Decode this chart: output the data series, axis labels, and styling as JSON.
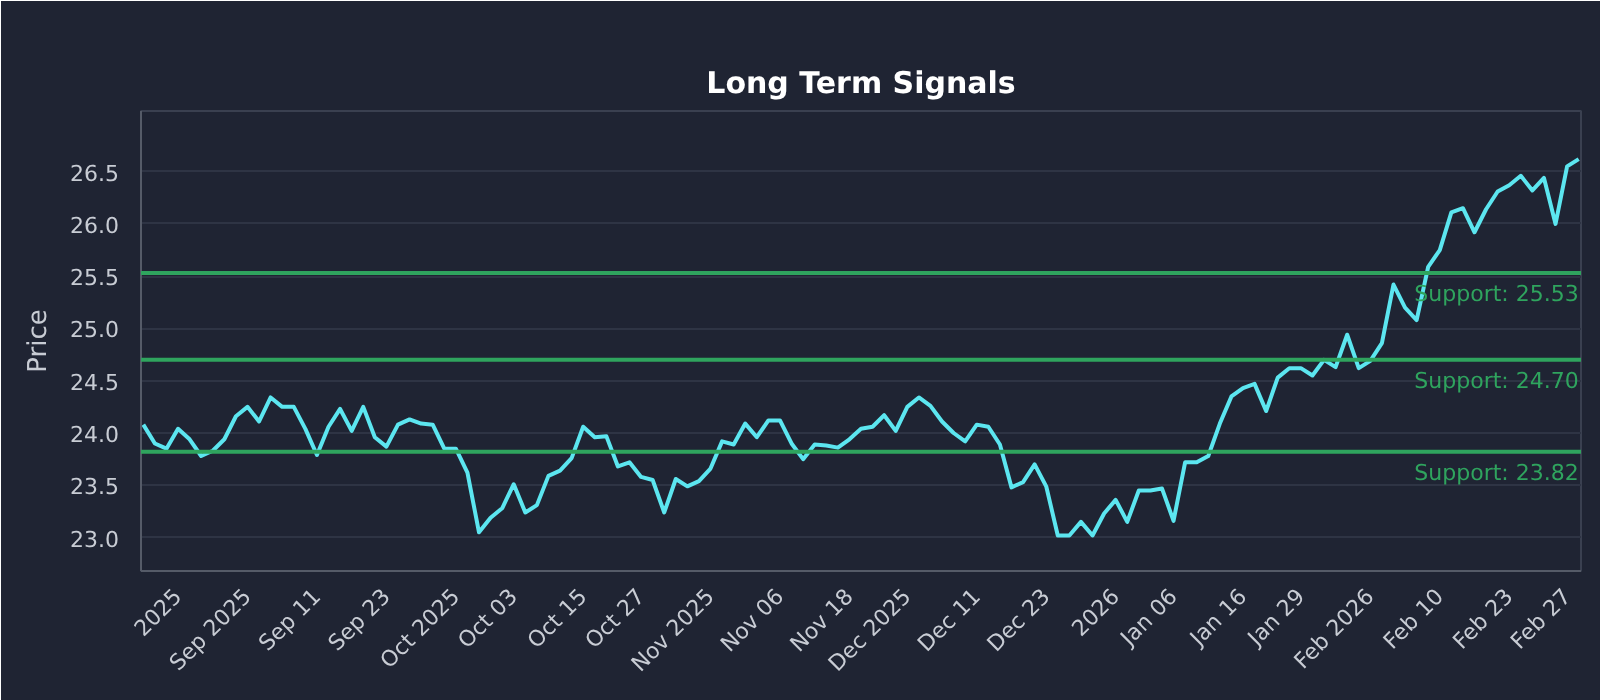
{
  "chart_data": {
    "type": "line",
    "title": "Long Term Signals",
    "ylabel": "Price",
    "categories": [
      null,
      null,
      null,
      "2025",
      null,
      null,
      null,
      null,
      null,
      "Sep 2025",
      null,
      null,
      null,
      null,
      null,
      "Sep 11",
      null,
      null,
      null,
      null,
      null,
      "Sep 23",
      null,
      null,
      null,
      null,
      null,
      "Oct 2025",
      null,
      null,
      null,
      null,
      "Oct 03",
      null,
      null,
      null,
      null,
      null,
      "Oct 15",
      null,
      null,
      null,
      null,
      "Oct 27",
      null,
      null,
      null,
      null,
      null,
      "Nov 2025",
      null,
      null,
      null,
      null,
      null,
      "Nov 06",
      null,
      null,
      null,
      null,
      null,
      "Nov 18",
      null,
      null,
      null,
      null,
      "Dec 2025",
      null,
      null,
      null,
      null,
      null,
      "Dec 11",
      null,
      null,
      null,
      null,
      null,
      "Dec 23",
      null,
      null,
      null,
      null,
      null,
      "2026",
      null,
      null,
      null,
      null,
      "Jan 06",
      null,
      null,
      null,
      null,
      null,
      "Jan 16",
      null,
      null,
      null,
      null,
      "Jan 29",
      null,
      null,
      null,
      null,
      null,
      "Feb 2026",
      null,
      null,
      null,
      null,
      null,
      "Feb 10",
      null,
      null,
      null,
      null,
      null,
      "Feb 23",
      null,
      null,
      null,
      null,
      "Feb 27",
      null
    ],
    "series": [
      {
        "color": "#5ce6f0",
        "values": [
          24.08,
          23.9,
          23.85,
          24.04,
          23.94,
          23.78,
          23.83,
          23.94,
          24.16,
          24.25,
          24.11,
          24.34,
          24.25,
          24.25,
          24.04,
          23.79,
          24.06,
          24.23,
          24.02,
          24.25,
          23.96,
          23.87,
          24.08,
          24.13,
          24.09,
          24.08,
          23.85,
          23.85,
          23.62,
          23.05,
          23.19,
          23.28,
          23.51,
          23.24,
          23.31,
          23.59,
          23.64,
          23.76,
          24.06,
          23.96,
          23.97,
          23.68,
          23.72,
          23.58,
          23.55,
          23.24,
          23.56,
          23.49,
          23.54,
          23.66,
          23.92,
          23.89,
          24.09,
          23.96,
          24.12,
          24.12,
          23.9,
          23.75,
          23.89,
          23.88,
          23.86,
          23.94,
          24.04,
          24.06,
          24.17,
          24.02,
          24.25,
          24.34,
          24.26,
          24.11,
          24.0,
          23.92,
          24.08,
          24.06,
          23.89,
          23.48,
          23.53,
          23.7,
          23.49,
          23.02,
          23.02,
          23.15,
          23.02,
          23.23,
          23.36,
          23.15,
          23.45,
          23.45,
          23.47,
          23.16,
          23.72,
          23.72,
          23.78,
          24.09,
          24.35,
          24.43,
          24.47,
          24.21,
          24.53,
          24.62,
          24.62,
          24.55,
          24.7,
          24.63,
          24.94,
          24.62,
          24.69,
          24.86,
          25.42,
          25.2,
          25.08,
          25.59,
          25.75,
          26.11,
          26.15,
          25.92,
          26.14,
          26.31,
          26.37,
          26.46,
          26.32,
          26.44,
          26.0,
          26.55,
          26.62
        ]
      }
    ],
    "ylim": [
      22.68,
      27.08
    ],
    "yticks": [
      {
        "value": 23,
        "label": "23.0"
      },
      {
        "value": 23.5,
        "label": "23.5"
      },
      {
        "value": 24,
        "label": "24.0"
      },
      {
        "value": 24.5,
        "label": "24.5"
      },
      {
        "value": 25,
        "label": "25.0"
      },
      {
        "value": 25.5,
        "label": "25.5"
      },
      {
        "value": 26,
        "label": "26.0"
      },
      {
        "value": 26.5,
        "label": "26.5"
      }
    ],
    "grid": "y",
    "marker": "none",
    "line_style": "solid",
    "ref_lines": [
      {
        "axis": "y",
        "value": 25.53,
        "label": "Support: 25.53",
        "color": "#2fa45e"
      },
      {
        "axis": "y",
        "value": 24.7,
        "label": "Support: 24.70",
        "color": "#2fa45e"
      },
      {
        "axis": "y",
        "value": 23.82,
        "label": "Support: 23.82",
        "color": "#2fa45e"
      }
    ]
  }
}
